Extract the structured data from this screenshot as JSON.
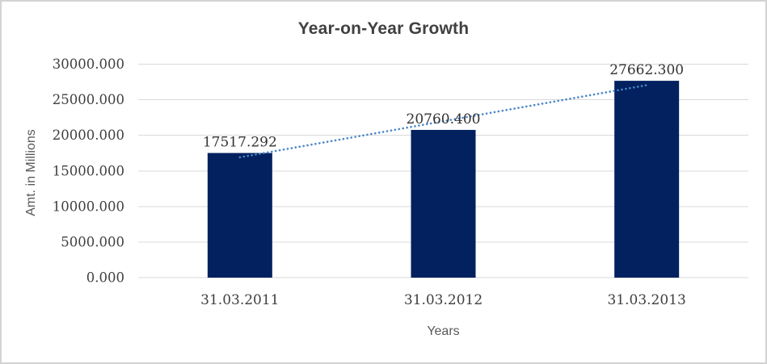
{
  "chart_data": {
    "type": "bar",
    "title": "Year-on-Year Growth",
    "categories": [
      "31.03.2011",
      "31.03.2012",
      "31.03.2013"
    ],
    "values": [
      17517.292,
      20760.4,
      27662.3
    ],
    "data_labels": [
      "17517.292",
      "20760.400",
      "27662.300"
    ],
    "xlabel": "Years",
    "ylabel": "Amt. in Millions",
    "ylim": [
      0,
      30000
    ],
    "ytick_step": 5000,
    "ytick_labels": [
      "0.000",
      "5000.000",
      "10000.000",
      "15000.000",
      "20000.000",
      "25000.000",
      "30000.000"
    ],
    "grid": true,
    "legend": false,
    "trendline": {
      "type": "linear",
      "style": "dotted",
      "color": "#4a86c8"
    },
    "colors": {
      "bar": "#02215e",
      "gridline": "#d9d9d9",
      "title": "#404040",
      "axis_title": "#595959",
      "tick_label": "#3f3f3f",
      "frame_border": "#d3d3d3"
    }
  }
}
